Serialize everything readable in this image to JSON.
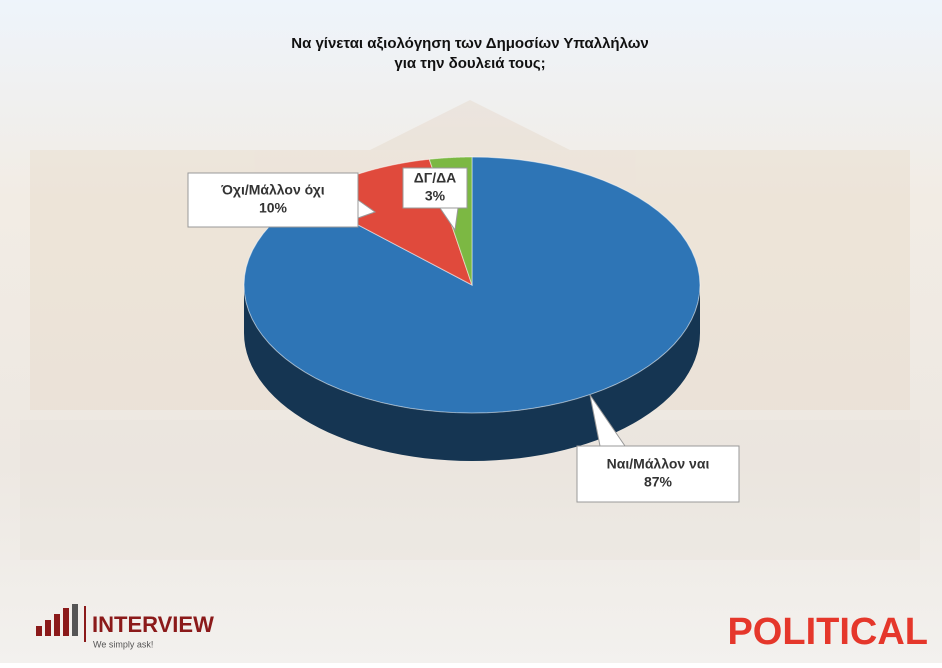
{
  "chart_data": {
    "type": "pie3d",
    "title": [
      "Να γίνεται αξιολόγηση των Δημοσίων Υπαλλήλων",
      "για την δουλειά τους;"
    ],
    "categories": [
      "Ναι/Μάλλον ναι",
      "Όχι/Μάλλον όχι",
      "ΔΓ/ΔΑ"
    ],
    "values": [
      87,
      10,
      3
    ],
    "value_labels": [
      "87%",
      "10%",
      "3%"
    ],
    "colors": [
      "#2e75b6",
      "#e04a3c",
      "#7cb843"
    ]
  },
  "branding": {
    "left": "INTERVIEW",
    "left_tagline": "We simply ask!",
    "right": "POLITICAL"
  }
}
